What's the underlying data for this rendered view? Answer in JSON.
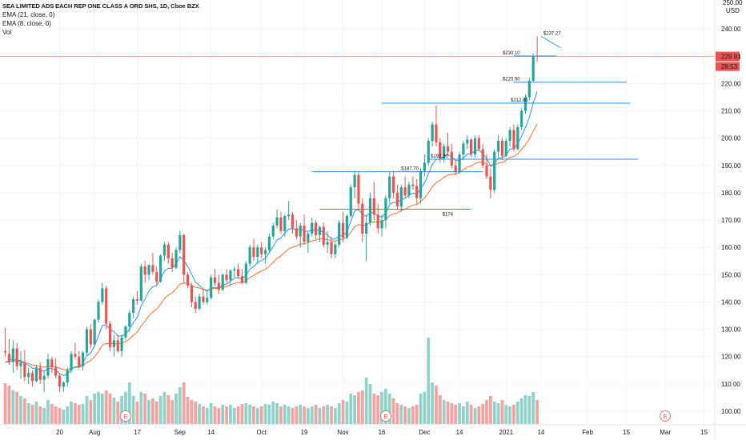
{
  "legend": {
    "title": "SEA LIMITED ADS EACH REP ONE CLASS A ORD SHS, 1D, Cboe BZX",
    "ema21": "EMA (21, close, 0)",
    "ema8": "EMA (8, close, 0)",
    "vol": "Vol"
  },
  "colors": {
    "up": "#26a69a",
    "down": "#ef5350",
    "vol_up": "#8fd3c9",
    "vol_down": "#f5a3a1",
    "ema8": "#2196f3",
    "ema21": "#ff6d2d",
    "level_line": "#2196f3",
    "price_line": "#f28b82",
    "earnings": "#ef5350"
  },
  "axis": {
    "currency": "USD",
    "top_partial": "250.00",
    "y_ticks": [
      100,
      110,
      120,
      130,
      140,
      150,
      160,
      170,
      180,
      190,
      200,
      210,
      220,
      230,
      240
    ],
    "x_ticks": [
      {
        "label": "20",
        "i": 14
      },
      {
        "label": "Aug",
        "i": 23
      },
      {
        "label": "17",
        "i": 34
      },
      {
        "label": "Sep",
        "i": 45
      },
      {
        "label": "14",
        "i": 53
      },
      {
        "label": "Oct",
        "i": 66
      },
      {
        "label": "19",
        "i": 77
      },
      {
        "label": "Nov",
        "i": 87
      },
      {
        "label": "16",
        "i": 97
      },
      {
        "label": "Dec",
        "i": 108
      },
      {
        "label": "14",
        "i": 117
      },
      {
        "label": "2021",
        "i": 129
      },
      {
        "label": "14",
        "i": 138
      },
      {
        "label": "Feb",
        "i": 150
      },
      {
        "label": "15",
        "i": 160
      },
      {
        "label": "Mar",
        "i": 170
      },
      {
        "label": "15",
        "i": 180
      }
    ]
  },
  "price_badges": {
    "last": "229.91",
    "countdown": "28:53"
  },
  "annotations": [
    {
      "label": "$237.27",
      "price": 237.27,
      "i1": 138,
      "i2": 143
    },
    {
      "label": "$230.10",
      "price": 230.1,
      "i1": 131,
      "i2": 142
    },
    {
      "label": "$220.50",
      "price": 220.5,
      "i1": 131,
      "i2": 160
    },
    {
      "label": "$212.80",
      "price": 212.8,
      "i1": 97,
      "i2": 161
    },
    {
      "label": "$192.30",
      "price": 192.3,
      "i1": 109,
      "i2": 163
    },
    {
      "label": "$187.70",
      "price": 187.7,
      "i1": 79,
      "i2": 123
    },
    {
      "label": "$174",
      "price": 174,
      "i1": 81,
      "i2": 120
    }
  ],
  "earnings_markers": [
    {
      "label": "E",
      "i": 31
    },
    {
      "label": "E",
      "i": 98
    },
    {
      "label": "E",
      "i": 170
    }
  ],
  "chart_data": {
    "type": "candlestick",
    "title": "SEA LIMITED ADS EACH REP ONE CLASS A ORD SHS, 1D, Cboe BZX",
    "ylim": [
      95,
      250
    ],
    "y_unit": "USD",
    "series": [
      {
        "name": "EMA (21, close, 0)"
      },
      {
        "name": "EMA (8, close, 0)"
      },
      {
        "name": "Vol"
      }
    ],
    "candles": [
      [
        122.0,
        130.5,
        120.0,
        121.5,
        51
      ],
      [
        121.0,
        126.5,
        117.0,
        118.0,
        48
      ],
      [
        118.0,
        126.0,
        114.0,
        123.0,
        42
      ],
      [
        123.0,
        125.0,
        115.0,
        116.5,
        40
      ],
      [
        116.5,
        122.0,
        112.0,
        118.0,
        35
      ],
      [
        118.0,
        122.5,
        111.0,
        112.5,
        32
      ],
      [
        112.5,
        116.0,
        110.0,
        114.0,
        26
      ],
      [
        114.0,
        115.0,
        109.0,
        111.0,
        24
      ],
      [
        111.0,
        117.0,
        110.5,
        116.0,
        28
      ],
      [
        116.0,
        118.0,
        110.0,
        111.5,
        22
      ],
      [
        111.5,
        115.0,
        107.0,
        113.0,
        20
      ],
      [
        113.0,
        121.0,
        112.0,
        119.0,
        30
      ],
      [
        119.0,
        120.0,
        114.0,
        116.0,
        25
      ],
      [
        116.0,
        119.5,
        112.0,
        113.0,
        22
      ],
      [
        113.0,
        114.0,
        107.0,
        109.0,
        20
      ],
      [
        109.0,
        111.0,
        107.0,
        110.5,
        18
      ],
      [
        110.5,
        116.0,
        109.0,
        115.0,
        22
      ],
      [
        115.0,
        122.0,
        114.0,
        121.0,
        28
      ],
      [
        121.0,
        125.0,
        119.0,
        120.0,
        26
      ],
      [
        120.0,
        122.0,
        115.5,
        116.5,
        24
      ],
      [
        116.5,
        122.0,
        115.0,
        121.5,
        25
      ],
      [
        121.5,
        131.0,
        120.5,
        130.0,
        35
      ],
      [
        130.0,
        132.0,
        123.0,
        124.5,
        30
      ],
      [
        124.5,
        134.0,
        124.0,
        133.5,
        38
      ],
      [
        133.5,
        141.0,
        132.5,
        140.0,
        40
      ],
      [
        140.0,
        147.0,
        139.0,
        145.0,
        38
      ],
      [
        145.0,
        146.0,
        130.0,
        132.0,
        42
      ],
      [
        132.0,
        133.0,
        122.0,
        123.5,
        38
      ],
      [
        123.5,
        128.0,
        120.0,
        126.0,
        33
      ],
      [
        126.0,
        128.0,
        121.5,
        122.0,
        28
      ],
      [
        122.0,
        128.0,
        120.0,
        127.0,
        35
      ],
      [
        127.0,
        131.5,
        126.0,
        131.0,
        40
      ],
      [
        131.0,
        137.0,
        129.0,
        136.0,
        52
      ],
      [
        136.0,
        142.0,
        134.0,
        141.0,
        35
      ],
      [
        141.0,
        144.0,
        139.0,
        140.5,
        28
      ],
      [
        140.5,
        154.0,
        140.0,
        153.0,
        40
      ],
      [
        153.0,
        155.0,
        147.0,
        150.0,
        38
      ],
      [
        150.0,
        154.0,
        148.0,
        153.5,
        30
      ],
      [
        153.5,
        158.0,
        150.0,
        151.0,
        32
      ],
      [
        151.0,
        153.0,
        146.0,
        147.5,
        28
      ],
      [
        147.5,
        157.5,
        147.0,
        157.0,
        35
      ],
      [
        157.0,
        162.0,
        155.0,
        161.0,
        40
      ],
      [
        161.0,
        162.0,
        154.0,
        156.0,
        36
      ],
      [
        156.0,
        158.0,
        151.0,
        152.5,
        30
      ],
      [
        152.5,
        160.0,
        152.0,
        159.0,
        38
      ],
      [
        159.0,
        166.0,
        158.0,
        164.5,
        46
      ],
      [
        164.5,
        165.0,
        147.0,
        150.0,
        52
      ],
      [
        150.0,
        151.0,
        145.0,
        146.0,
        34
      ],
      [
        146.0,
        147.0,
        138.0,
        140.0,
        30
      ],
      [
        140.0,
        142.0,
        136.0,
        137.5,
        28
      ],
      [
        137.5,
        143.0,
        137.0,
        142.0,
        25
      ],
      [
        142.0,
        145.0,
        139.0,
        140.0,
        22
      ],
      [
        140.0,
        144.0,
        139.0,
        141.5,
        20
      ],
      [
        141.5,
        150.0,
        141.0,
        149.0,
        26
      ],
      [
        149.0,
        152.0,
        146.0,
        147.0,
        22
      ],
      [
        147.0,
        150.0,
        143.0,
        144.5,
        20
      ],
      [
        144.5,
        150.5,
        144.0,
        150.0,
        24
      ],
      [
        150.0,
        152.0,
        147.0,
        148.0,
        22
      ],
      [
        148.0,
        152.0,
        146.0,
        151.5,
        24
      ],
      [
        151.5,
        153.0,
        149.0,
        152.0,
        20
      ],
      [
        152.0,
        154.0,
        148.5,
        149.5,
        22
      ],
      [
        149.5,
        152.0,
        146.5,
        147.0,
        25
      ],
      [
        147.0,
        155.0,
        146.5,
        154.0,
        26
      ],
      [
        154.0,
        161.0,
        153.0,
        160.0,
        24
      ],
      [
        160.0,
        163.0,
        155.0,
        156.5,
        22
      ],
      [
        156.5,
        161.0,
        154.0,
        160.0,
        20
      ],
      [
        160.0,
        162.0,
        156.0,
        157.5,
        22
      ],
      [
        157.5,
        160.0,
        154.0,
        159.0,
        25
      ],
      [
        159.0,
        165.0,
        158.0,
        164.0,
        24
      ],
      [
        164.0,
        169.0,
        163.0,
        168.0,
        28
      ],
      [
        168.0,
        174.0,
        167.0,
        171.0,
        26
      ],
      [
        171.0,
        173.0,
        165.0,
        166.0,
        22
      ],
      [
        166.0,
        172.0,
        164.0,
        171.5,
        24
      ],
      [
        171.5,
        177.0,
        170.0,
        172.0,
        22
      ],
      [
        172.0,
        173.0,
        165.0,
        167.0,
        20
      ],
      [
        167.0,
        170.0,
        163.0,
        164.0,
        22
      ],
      [
        164.0,
        169.0,
        160.0,
        168.0,
        24
      ],
      [
        168.0,
        172.0,
        161.0,
        162.0,
        22
      ],
      [
        162.0,
        166.0,
        158.0,
        165.0,
        20
      ],
      [
        165.0,
        171.0,
        164.0,
        169.0,
        22
      ],
      [
        169.0,
        170.0,
        163.0,
        164.5,
        24
      ],
      [
        164.5,
        168.0,
        162.0,
        167.5,
        20
      ],
      [
        167.5,
        169.0,
        160.0,
        161.0,
        22
      ],
      [
        161.0,
        166.0,
        158.0,
        162.0,
        24
      ],
      [
        162.0,
        164.0,
        156.0,
        157.5,
        22
      ],
      [
        157.5,
        162.0,
        156.0,
        161.0,
        20
      ],
      [
        161.0,
        170.0,
        160.0,
        169.0,
        26
      ],
      [
        169.0,
        173.0,
        162.0,
        163.5,
        30
      ],
      [
        163.5,
        172.0,
        163.0,
        171.5,
        28
      ],
      [
        171.5,
        183.0,
        171.0,
        182.0,
        38
      ],
      [
        182.0,
        188.0,
        178.0,
        186.5,
        36
      ],
      [
        186.5,
        188.0,
        174.0,
        176.0,
        40
      ],
      [
        176.0,
        178.0,
        162.0,
        165.0,
        42
      ],
      [
        165.0,
        172.0,
        155.0,
        169.0,
        58
      ],
      [
        169.0,
        180.0,
        168.0,
        178.0,
        50
      ],
      [
        178.0,
        184.0,
        170.0,
        172.0,
        38
      ],
      [
        172.0,
        176.0,
        165.0,
        167.0,
        36
      ],
      [
        167.0,
        172.0,
        164.0,
        170.0,
        40
      ],
      [
        170.0,
        179.0,
        167.0,
        178.0,
        44
      ],
      [
        178.0,
        188.0,
        176.0,
        186.0,
        38
      ],
      [
        186.0,
        188.0,
        178.0,
        180.0,
        32
      ],
      [
        180.0,
        183.0,
        174.0,
        175.0,
        26
      ],
      [
        175.0,
        183.0,
        173.0,
        182.0,
        24
      ],
      [
        182.0,
        186.0,
        178.0,
        179.0,
        22
      ],
      [
        179.0,
        184.0,
        178.0,
        183.0,
        20
      ],
      [
        183.0,
        186.0,
        181.0,
        182.5,
        22
      ],
      [
        182.5,
        185.0,
        176.0,
        178.0,
        24
      ],
      [
        178.0,
        189.0,
        176.0,
        188.0,
        38
      ],
      [
        188.0,
        194.0,
        186.0,
        191.0,
        40
      ],
      [
        191.0,
        200.0,
        190.0,
        199.0,
        108
      ],
      [
        199.0,
        206.0,
        197.0,
        205.0,
        52
      ],
      [
        205.0,
        212.0,
        197.0,
        198.5,
        48
      ],
      [
        198.5,
        200.0,
        191.0,
        192.5,
        36
      ],
      [
        192.5,
        198.0,
        191.0,
        197.0,
        30
      ],
      [
        197.0,
        202.0,
        194.0,
        195.0,
        28
      ],
      [
        195.0,
        198.0,
        189.0,
        190.0,
        26
      ],
      [
        190.0,
        192.0,
        186.5,
        187.5,
        24
      ],
      [
        187.5,
        195.0,
        187.0,
        194.0,
        26
      ],
      [
        194.0,
        199.0,
        192.0,
        198.0,
        22
      ],
      [
        198.0,
        201.0,
        196.0,
        199.5,
        28
      ],
      [
        199.5,
        200.0,
        193.0,
        194.0,
        24
      ],
      [
        194.0,
        201.0,
        193.0,
        200.0,
        20
      ],
      [
        200.0,
        201.0,
        195.5,
        196.0,
        22
      ],
      [
        196.0,
        198.0,
        189.0,
        190.0,
        25
      ],
      [
        190.0,
        194.0,
        185.0,
        186.0,
        30
      ],
      [
        186.0,
        189.0,
        178.0,
        181.0,
        35
      ],
      [
        181.0,
        196.0,
        180.0,
        195.0,
        28
      ],
      [
        195.0,
        201.0,
        193.0,
        199.0,
        26
      ],
      [
        199.0,
        200.0,
        192.0,
        193.5,
        30
      ],
      [
        193.5,
        200.0,
        193.0,
        199.0,
        24
      ],
      [
        199.0,
        204.0,
        197.0,
        203.0,
        22
      ],
      [
        203.0,
        205.0,
        195.0,
        196.0,
        24
      ],
      [
        196.0,
        205.0,
        195.5,
        204.0,
        28
      ],
      [
        204.0,
        211.0,
        203.0,
        210.0,
        32
      ],
      [
        210.0,
        216.0,
        209.0,
        215.0,
        36
      ],
      [
        215.0,
        222.0,
        214.0,
        221.0,
        35
      ],
      [
        221.0,
        231.0,
        220.5,
        230.1,
        40
      ],
      [
        230.1,
        237.27,
        228.0,
        229.91,
        30
      ]
    ],
    "ema8": [
      118.0,
      118.5,
      119.2,
      118.7,
      118.6,
      117.3,
      116.9,
      115.7,
      115.8,
      115.0,
      114.6,
      115.6,
      115.6,
      115.1,
      113.8,
      113.1,
      113.5,
      115.3,
      116.3,
      116.3,
      117.5,
      120.3,
      121.3,
      123.9,
      127.5,
      131.4,
      131.6,
      129.9,
      129.2,
      127.6,
      127.5,
      128.3,
      130.1,
      132.5,
      134.3,
      138.5,
      141.1,
      144.0,
      145.6,
      146.0,
      148.5,
      151.3,
      152.3,
      152.4,
      154.0,
      156.6,
      155.1,
      153.1,
      150.2,
      147.4,
      146.1,
      144.7,
      143.9,
      145.0,
      145.4,
      145.2,
      146.3,
      146.6,
      147.7,
      148.7,
      148.9,
      148.4,
      149.7,
      152.0,
      152.9,
      154.5,
      155.2,
      156.1,
      158.0,
      160.3,
      162.7,
      163.4,
      165.2,
      166.7,
      166.9,
      166.3,
      166.8,
      166.0,
      165.8,
      166.5,
      166.1,
      166.5,
      165.3,
      164.6,
      163.1,
      163.0,
      164.3,
      164.2,
      165.8,
      169.4,
      173.3,
      173.9,
      172.0,
      171.4,
      172.8,
      172.6,
      171.4,
      171.1,
      172.6,
      175.6,
      176.6,
      176.3,
      177.6,
      178.0,
      179.1,
      179.9,
      179.5,
      181.5,
      183.6,
      186.9,
      190.4,
      192.2,
      192.3,
      193.4,
      194.0,
      193.1,
      191.8,
      191.8,
      192.7,
      194.2,
      194.2,
      195.5,
      195.6,
      194.4,
      192.5,
      189.9,
      190.8,
      192.6,
      192.9,
      193.8,
      196.0,
      196.1,
      198.0,
      200.7,
      203.9,
      207.7,
      212.9,
      217.0
    ],
    "ema21": [
      118.0,
      118.0,
      118.4,
      118.3,
      118.3,
      117.8,
      117.5,
      116.9,
      116.8,
      116.4,
      116.1,
      116.5,
      116.5,
      116.3,
      115.7,
      115.2,
      115.2,
      115.7,
      116.1,
      116.1,
      116.6,
      117.9,
      118.5,
      119.9,
      121.8,
      124.1,
      124.8,
      124.7,
      124.9,
      124.7,
      124.9,
      125.5,
      126.5,
      127.8,
      129.0,
      131.2,
      132.9,
      134.9,
      136.4,
      137.4,
      139.2,
      141.2,
      142.5,
      143.4,
      144.8,
      146.6,
      146.9,
      146.8,
      146.2,
      145.4,
      145.1,
      144.6,
      144.3,
      144.8,
      145.0,
      145.0,
      145.5,
      145.7,
      146.3,
      146.8,
      147.1,
      147.1,
      147.8,
      149.0,
      149.7,
      150.7,
      151.3,
      152.0,
      153.1,
      154.5,
      156.0,
      156.9,
      158.2,
      159.4,
      160.1,
      160.5,
      161.2,
      161.3,
      161.7,
      162.4,
      162.6,
      163.2,
      163.0,
      162.9,
      162.4,
      162.3,
      162.9,
      163.0,
      163.8,
      165.5,
      167.6,
      168.3,
      168.1,
      168.2,
      169.1,
      169.3,
      169.3,
      169.4,
      170.2,
      171.6,
      172.3,
      172.6,
      173.5,
      174.0,
      174.8,
      175.5,
      175.7,
      176.8,
      178.1,
      180.0,
      182.2,
      183.7,
      184.5,
      185.6,
      186.5,
      186.8,
      186.8,
      187.4,
      188.4,
      189.4,
      189.8,
      190.7,
      191.2,
      191.1,
      190.6,
      189.7,
      190.1,
      190.9,
      191.1,
      191.9,
      193.0,
      193.3,
      194.3,
      195.8,
      197.6,
      199.7,
      202.6,
      205.1
    ]
  }
}
